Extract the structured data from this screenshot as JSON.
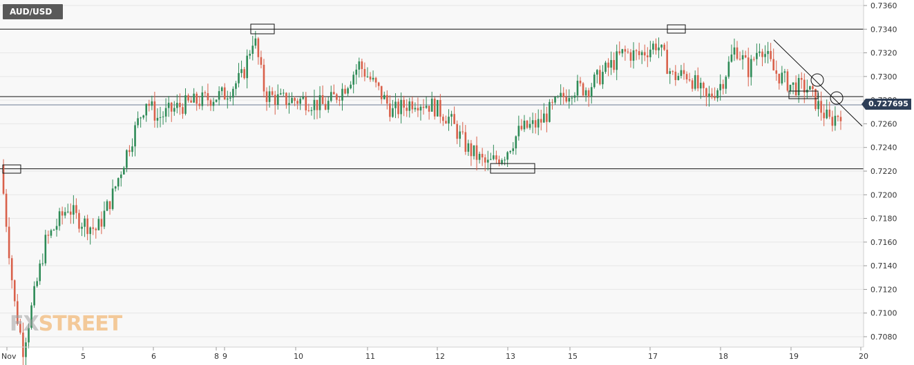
{
  "ticker": "AUD/USD",
  "last_price_label": "0.727695",
  "watermark": {
    "part1": "FX",
    "part2": "STREET"
  },
  "colors": {
    "up": "#2e8b57",
    "down": "#d9604a",
    "grid": "#e6e6e6",
    "plot_bg": "#f8f8f8",
    "price_tag": "#2d3e57",
    "line": "#000000"
  },
  "chart_data": {
    "type": "candlestick",
    "title": "AUD/USD",
    "ylim": [
      0.707,
      0.7365
    ],
    "y_ticks": [
      "0.7080",
      "0.7100",
      "0.7120",
      "0.7140",
      "0.7160",
      "0.7180",
      "0.7200",
      "0.7220",
      "0.7240",
      "0.7260",
      "0.7280",
      "0.7300",
      "0.7320",
      "0.7340",
      "0.7360"
    ],
    "x_ticks": [
      "Nov",
      "5",
      "6",
      "8",
      "9",
      "10",
      "11",
      "12",
      "13",
      "15",
      "17",
      "18",
      "19",
      "20"
    ],
    "horizontal_levels": [
      0.734,
      0.7283,
      0.7276,
      0.7222
    ],
    "last_price": 0.727695,
    "trendline": {
      "from": [
        "19",
        0.7331
      ],
      "to": [
        "20",
        0.7258
      ]
    },
    "anchors": [
      {
        "x": 0.0,
        "y": 0.7225
      },
      {
        "x": 0.6,
        "y": 0.711
      },
      {
        "x": 1.0,
        "y": 0.707
      },
      {
        "x": 2.0,
        "y": 0.716
      },
      {
        "x": 3.0,
        "y": 0.719
      },
      {
        "x": 3.4,
        "y": 0.718
      },
      {
        "x": 4.3,
        "y": 0.717
      },
      {
        "x": 5.0,
        "y": 0.72
      },
      {
        "x": 5.7,
        "y": 0.724
      },
      {
        "x": 6.5,
        "y": 0.728
      },
      {
        "x": 7.0,
        "y": 0.7265
      },
      {
        "x": 8.0,
        "y": 0.7275
      },
      {
        "x": 9.0,
        "y": 0.728
      },
      {
        "x": 10.0,
        "y": 0.7285
      },
      {
        "x": 10.8,
        "y": 0.73
      },
      {
        "x": 11.3,
        "y": 0.7335
      },
      {
        "x": 11.8,
        "y": 0.7285
      },
      {
        "x": 12.5,
        "y": 0.728
      },
      {
        "x": 13.5,
        "y": 0.728
      },
      {
        "x": 14.5,
        "y": 0.7275
      },
      {
        "x": 15.3,
        "y": 0.729
      },
      {
        "x": 16.0,
        "y": 0.731
      },
      {
        "x": 16.8,
        "y": 0.729
      },
      {
        "x": 17.5,
        "y": 0.727
      },
      {
        "x": 18.5,
        "y": 0.728
      },
      {
        "x": 19.3,
        "y": 0.7275
      },
      {
        "x": 20.0,
        "y": 0.7265
      },
      {
        "x": 20.8,
        "y": 0.724
      },
      {
        "x": 21.7,
        "y": 0.7225
      },
      {
        "x": 22.5,
        "y": 0.7235
      },
      {
        "x": 23.2,
        "y": 0.7255
      },
      {
        "x": 24.0,
        "y": 0.726
      },
      {
        "x": 24.7,
        "y": 0.7275
      },
      {
        "x": 25.5,
        "y": 0.729
      },
      {
        "x": 26.2,
        "y": 0.729
      },
      {
        "x": 27.0,
        "y": 0.7305
      },
      {
        "x": 27.8,
        "y": 0.732
      },
      {
        "x": 28.5,
        "y": 0.7318
      },
      {
        "x": 29.3,
        "y": 0.7328
      },
      {
        "x": 30.0,
        "y": 0.73
      },
      {
        "x": 30.7,
        "y": 0.7302
      },
      {
        "x": 31.5,
        "y": 0.728
      },
      {
        "x": 32.2,
        "y": 0.7295
      },
      {
        "x": 32.8,
        "y": 0.7325
      },
      {
        "x": 33.4,
        "y": 0.7305
      },
      {
        "x": 33.9,
        "y": 0.7328
      },
      {
        "x": 34.5,
        "y": 0.7305
      },
      {
        "x": 35.3,
        "y": 0.7292
      },
      {
        "x": 36.0,
        "y": 0.729
      },
      {
        "x": 36.5,
        "y": 0.7275
      },
      {
        "x": 37.0,
        "y": 0.7262
      },
      {
        "x": 37.5,
        "y": 0.727
      }
    ]
  }
}
